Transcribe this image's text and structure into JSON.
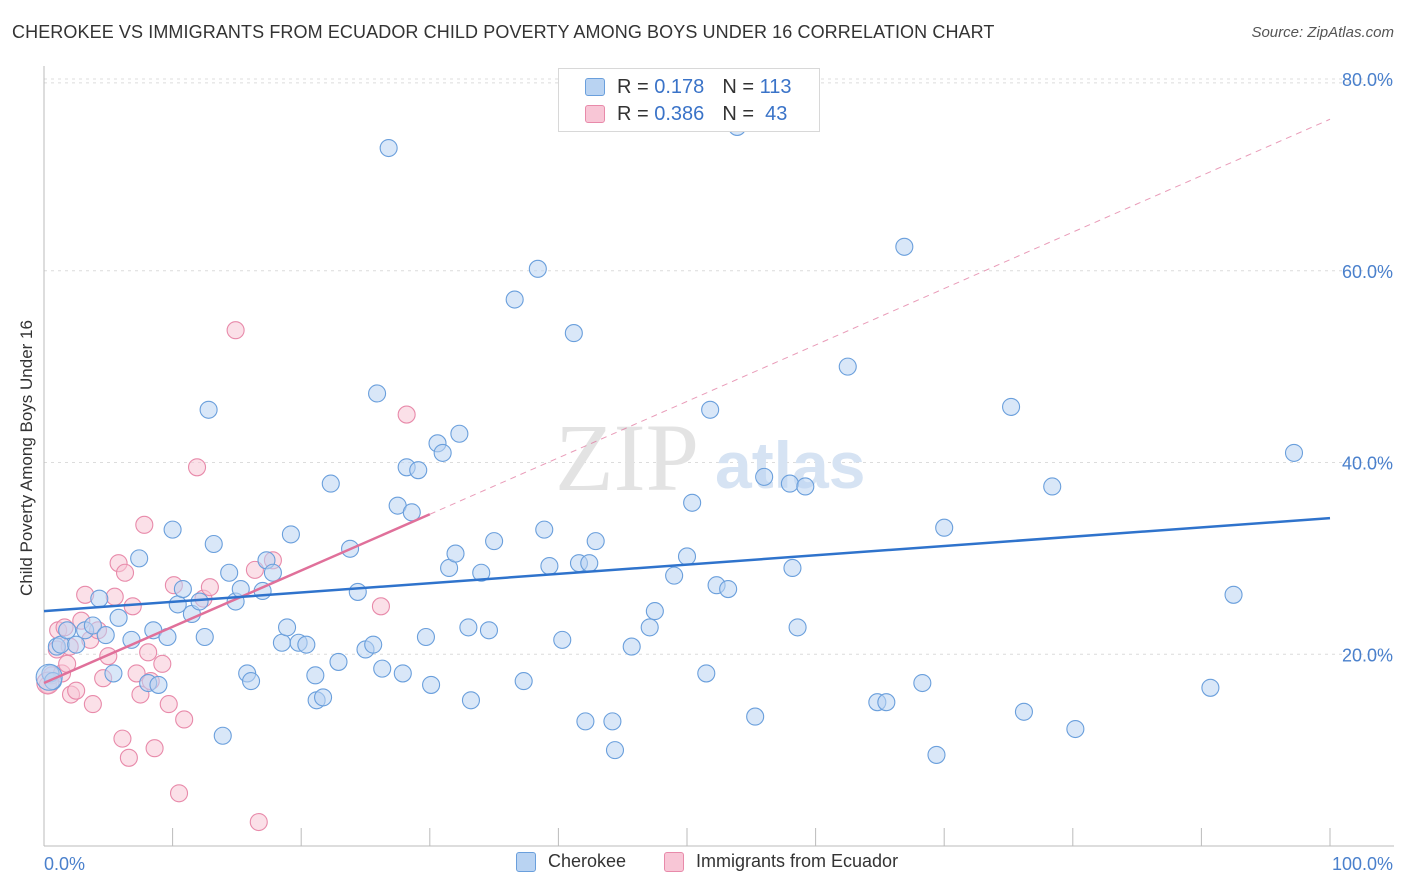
{
  "title": "CHEROKEE VS IMMIGRANTS FROM ECUADOR CHILD POVERTY AMONG BOYS UNDER 16 CORRELATION CHART",
  "source": "Source: ZipAtlas.com",
  "watermark": {
    "zip": "ZIP",
    "atlas": "atlas"
  },
  "legend_top": {
    "rows": [
      {
        "r_label": "R =",
        "r_value": "0.178",
        "n_label": "N =",
        "n_value": "113"
      },
      {
        "r_label": "R =",
        "r_value": "0.386",
        "n_label": "N =",
        "n_value": "43"
      }
    ]
  },
  "legend_bottom": {
    "series1": "Cherokee",
    "series2": "Immigrants from Ecuador"
  },
  "colors": {
    "cherokee_fill": "#b9d3f2",
    "cherokee_stroke": "#6a9fdc",
    "cherokee_line": "#2f73cc",
    "ecuador_fill": "#f8c6d6",
    "ecuador_stroke": "#e88aaa",
    "ecuador_line": "#e0709a",
    "axis_label": "#4a80cc"
  },
  "chart_data": {
    "type": "scatter",
    "title": "CHEROKEE VS IMMIGRANTS FROM ECUADOR CHILD POVERTY AMONG BOYS UNDER 16 CORRELATION CHART",
    "xlabel": "",
    "ylabel": "Child Poverty Among Boys Under 16",
    "xlim": [
      0,
      100
    ],
    "ylim": [
      0,
      80
    ],
    "x_tick_labels": [
      "0.0%",
      "100.0%"
    ],
    "y_ticks": [
      20,
      40,
      60,
      80
    ],
    "y_tick_labels": [
      "20.0%",
      "40.0%",
      "60.0%",
      "80.0%"
    ],
    "grid": true,
    "legend_position": "top-center",
    "series": [
      {
        "name": "Cherokee",
        "R": 0.178,
        "N": 113,
        "trend": {
          "x": [
            0,
            100
          ],
          "y": [
            24.5,
            34.2
          ]
        },
        "points": [
          [
            0.5,
            18.0
          ],
          [
            0.7,
            17.2
          ],
          [
            1.0,
            20.8
          ],
          [
            1.3,
            21.0
          ],
          [
            1.8,
            22.5
          ],
          [
            2.5,
            21.0
          ],
          [
            3.2,
            22.5
          ],
          [
            3.8,
            23.0
          ],
          [
            4.3,
            25.8
          ],
          [
            4.8,
            22.0
          ],
          [
            5.4,
            18.0
          ],
          [
            5.8,
            23.8
          ],
          [
            6.8,
            21.5
          ],
          [
            7.4,
            30.0
          ],
          [
            8.1,
            17.0
          ],
          [
            8.5,
            22.5
          ],
          [
            8.9,
            16.8
          ],
          [
            9.6,
            21.8
          ],
          [
            10.0,
            33.0
          ],
          [
            10.4,
            25.2
          ],
          [
            10.8,
            26.8
          ],
          [
            11.5,
            24.2
          ],
          [
            12.1,
            25.5
          ],
          [
            12.5,
            21.8
          ],
          [
            12.8,
            45.5
          ],
          [
            13.2,
            31.5
          ],
          [
            13.9,
            11.5
          ],
          [
            14.4,
            28.5
          ],
          [
            14.9,
            25.5
          ],
          [
            15.3,
            26.8
          ],
          [
            15.8,
            18.0
          ],
          [
            16.1,
            17.2
          ],
          [
            17.0,
            26.6
          ],
          [
            17.3,
            29.8
          ],
          [
            17.8,
            28.5
          ],
          [
            18.5,
            21.2
          ],
          [
            18.9,
            22.8
          ],
          [
            19.2,
            32.5
          ],
          [
            19.8,
            21.2
          ],
          [
            20.4,
            21.0
          ],
          [
            21.1,
            17.8
          ],
          [
            21.2,
            15.2
          ],
          [
            21.7,
            15.5
          ],
          [
            22.3,
            37.8
          ],
          [
            22.9,
            19.2
          ],
          [
            23.8,
            31.0
          ],
          [
            24.4,
            26.5
          ],
          [
            25.0,
            20.5
          ],
          [
            25.6,
            21.0
          ],
          [
            25.9,
            47.2
          ],
          [
            26.3,
            18.5
          ],
          [
            26.8,
            72.8
          ],
          [
            27.5,
            35.5
          ],
          [
            27.9,
            18.0
          ],
          [
            28.2,
            39.5
          ],
          [
            28.6,
            34.8
          ],
          [
            29.1,
            39.2
          ],
          [
            29.7,
            21.8
          ],
          [
            30.1,
            16.8
          ],
          [
            30.6,
            42.0
          ],
          [
            31.0,
            41.0
          ],
          [
            31.5,
            29.0
          ],
          [
            32.0,
            30.5
          ],
          [
            32.3,
            43.0
          ],
          [
            33.0,
            22.8
          ],
          [
            33.2,
            15.2
          ],
          [
            34.0,
            28.5
          ],
          [
            34.6,
            22.5
          ],
          [
            35.0,
            31.8
          ],
          [
            36.6,
            57.0
          ],
          [
            37.3,
            17.2
          ],
          [
            38.4,
            60.2
          ],
          [
            38.9,
            33.0
          ],
          [
            39.3,
            29.2
          ],
          [
            40.3,
            21.5
          ],
          [
            41.2,
            53.5
          ],
          [
            41.6,
            29.5
          ],
          [
            42.1,
            13.0
          ],
          [
            42.4,
            29.5
          ],
          [
            42.9,
            31.8
          ],
          [
            44.2,
            13.0
          ],
          [
            44.4,
            10.0
          ],
          [
            45.7,
            20.8
          ],
          [
            47.1,
            22.8
          ],
          [
            47.5,
            24.5
          ],
          [
            49.0,
            28.2
          ],
          [
            50.0,
            30.2
          ],
          [
            50.4,
            35.8
          ],
          [
            51.5,
            18.0
          ],
          [
            51.8,
            45.5
          ],
          [
            52.3,
            27.2
          ],
          [
            53.2,
            26.8
          ],
          [
            53.9,
            75.0
          ],
          [
            55.3,
            13.5
          ],
          [
            56.0,
            38.5
          ],
          [
            58.0,
            37.8
          ],
          [
            58.2,
            29.0
          ],
          [
            58.6,
            22.8
          ],
          [
            59.2,
            37.5
          ],
          [
            62.5,
            50.0
          ],
          [
            64.8,
            15.0
          ],
          [
            65.5,
            15.0
          ],
          [
            66.9,
            62.5
          ],
          [
            68.3,
            17.0
          ],
          [
            69.4,
            9.5
          ],
          [
            70.0,
            33.2
          ],
          [
            75.2,
            45.8
          ],
          [
            76.2,
            14.0
          ],
          [
            78.4,
            37.5
          ],
          [
            80.2,
            12.2
          ],
          [
            90.7,
            16.5
          ],
          [
            92.5,
            26.2
          ],
          [
            97.2,
            41.0
          ]
        ]
      },
      {
        "name": "Immigrants from Ecuador",
        "R": 0.386,
        "N": 43,
        "trend": {
          "x": [
            0,
            30
          ],
          "y": [
            17.0,
            34.6
          ]
        },
        "trend_extended": {
          "x": [
            30,
            100
          ],
          "y": [
            34.6,
            75.8
          ]
        },
        "points": [
          [
            0.3,
            16.8
          ],
          [
            0.6,
            17.8
          ],
          [
            1.0,
            20.5
          ],
          [
            1.4,
            18.0
          ],
          [
            1.8,
            19.0
          ],
          [
            2.1,
            15.8
          ],
          [
            2.5,
            16.2
          ],
          [
            2.9,
            23.5
          ],
          [
            3.2,
            26.2
          ],
          [
            3.6,
            21.5
          ],
          [
            3.8,
            14.8
          ],
          [
            4.2,
            22.5
          ],
          [
            4.6,
            17.5
          ],
          [
            5.0,
            19.8
          ],
          [
            5.5,
            26.0
          ],
          [
            5.8,
            29.5
          ],
          [
            6.1,
            11.2
          ],
          [
            6.3,
            28.5
          ],
          [
            6.6,
            9.2
          ],
          [
            6.9,
            25.0
          ],
          [
            7.2,
            18.0
          ],
          [
            7.5,
            15.8
          ],
          [
            7.8,
            33.5
          ],
          [
            8.1,
            20.2
          ],
          [
            8.3,
            17.2
          ],
          [
            8.6,
            10.2
          ],
          [
            9.2,
            19.0
          ],
          [
            9.7,
            14.8
          ],
          [
            10.1,
            27.2
          ],
          [
            10.5,
            5.5
          ],
          [
            10.9,
            13.2
          ],
          [
            11.9,
            39.5
          ],
          [
            12.4,
            25.8
          ],
          [
            12.9,
            27.0
          ],
          [
            14.9,
            53.8
          ],
          [
            16.4,
            28.8
          ],
          [
            16.7,
            2.5
          ],
          [
            17.8,
            29.8
          ],
          [
            26.2,
            25.0
          ],
          [
            28.2,
            45.0
          ],
          [
            1.1,
            22.5
          ],
          [
            1.6,
            22.8
          ],
          [
            2.0,
            20.8
          ]
        ]
      }
    ]
  }
}
